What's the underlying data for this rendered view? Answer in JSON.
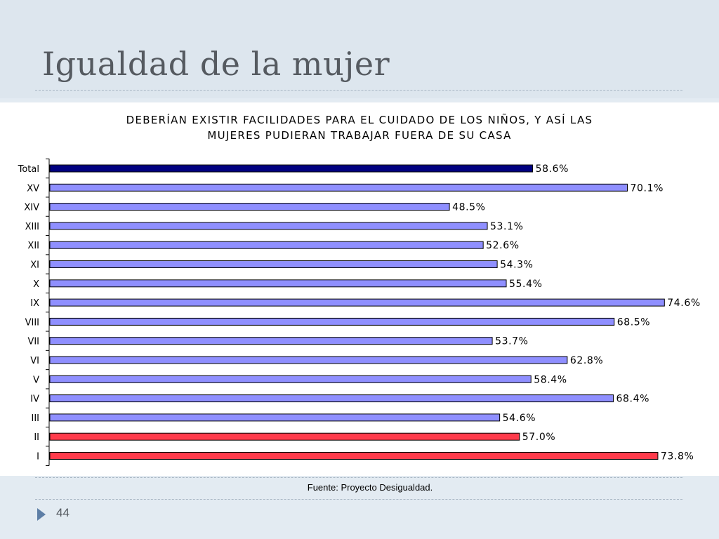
{
  "slide": {
    "title": "Igualdad de la mujer",
    "source": "Fuente: Proyecto Desigualdad.",
    "page_number": "44"
  },
  "chart_data": {
    "type": "bar",
    "orientation": "horizontal",
    "title_lines": [
      "DEBERÍAN EXISTIR FACILIDADES PARA EL CUIDADO DE LOS NIÑOS, Y ASÍ LAS",
      "MUJERES PUDIERAN TRABAJAR FUERA DE SU CASA"
    ],
    "categories": [
      "Total",
      "XV",
      "XIV",
      "XIII",
      "XII",
      "XI",
      "X",
      "IX",
      "VIII",
      "VII",
      "VI",
      "V",
      "IV",
      "III",
      "II",
      "I"
    ],
    "values": [
      58.6,
      70.1,
      48.5,
      53.1,
      52.6,
      54.3,
      55.4,
      74.6,
      68.5,
      53.7,
      62.8,
      58.4,
      68.4,
      54.6,
      57.0,
      73.8
    ],
    "value_labels": [
      "58.6%",
      "70.1%",
      "48.5%",
      "53.1%",
      "52.6%",
      "54.3%",
      "55.4%",
      "74.6%",
      "68.5%",
      "53.7%",
      "62.8%",
      "58.4%",
      "68.4%",
      "54.6%",
      "57.0%",
      "73.8%"
    ],
    "bar_colors": [
      "#000080",
      "#8f8fff",
      "#8f8fff",
      "#8f8fff",
      "#8f8fff",
      "#8f8fff",
      "#8f8fff",
      "#8f8fff",
      "#8f8fff",
      "#8f8fff",
      "#8f8fff",
      "#8f8fff",
      "#8f8fff",
      "#8f8fff",
      "#ff3b4b",
      "#ff3b4b"
    ],
    "xlim": [
      0,
      75
    ],
    "grid": false,
    "legend": "none"
  }
}
